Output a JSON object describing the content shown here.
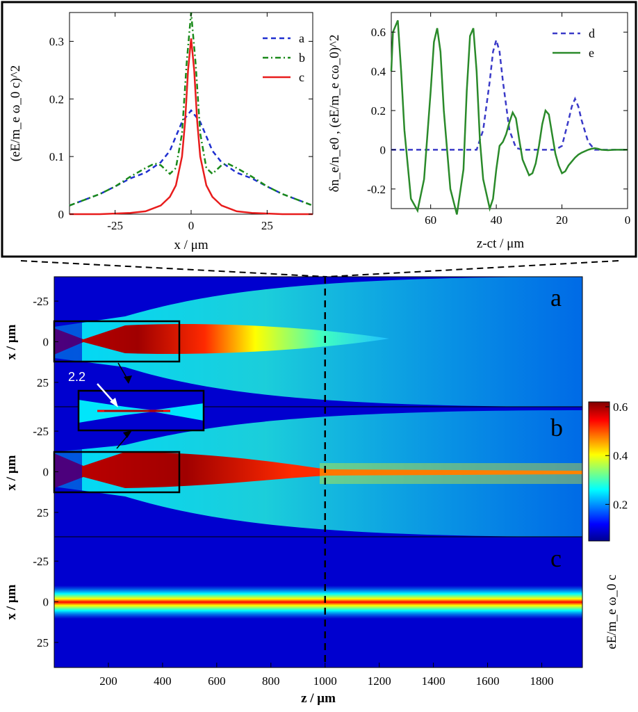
{
  "colors": {
    "series_a": "#1f2fd0",
    "series_b": "#1a8a1a",
    "series_c": "#e81c1c",
    "series_d": "#3a3ac8",
    "series_e": "#2a8a2a",
    "colormap": [
      "#00008f",
      "#0000ff",
      "#00ffff",
      "#ffff00",
      "#ff0000",
      "#800000"
    ]
  },
  "chart_data": [
    {
      "id": "left-inset",
      "type": "line",
      "xlabel": "x / μm",
      "ylabel": "(eE/m_e ω_0 c)^2",
      "xlim": [
        -40,
        40
      ],
      "ylim": [
        0,
        0.35
      ],
      "xticks": [
        -25,
        0,
        25
      ],
      "xtick_labels": [
        "-25",
        "0",
        "25"
      ],
      "yticks": [
        0,
        0.1,
        0.2,
        0.3
      ],
      "ytick_labels": [
        "0",
        "0.1",
        "0.2",
        "0.3"
      ],
      "legend": [
        "a",
        "b",
        "c"
      ],
      "series": [
        {
          "name": "a",
          "style": "dashed",
          "x": [
            -40,
            -35,
            -30,
            -25,
            -20,
            -15,
            -10,
            -7,
            -5,
            -3,
            0,
            3,
            5,
            7,
            10,
            15,
            20,
            25,
            30,
            35,
            40
          ],
          "y": [
            0.015,
            0.025,
            0.035,
            0.048,
            0.062,
            0.072,
            0.09,
            0.11,
            0.135,
            0.16,
            0.18,
            0.16,
            0.135,
            0.11,
            0.09,
            0.072,
            0.062,
            0.048,
            0.035,
            0.025,
            0.015
          ]
        },
        {
          "name": "b",
          "style": "dashdot",
          "x": [
            -40,
            -35,
            -30,
            -25,
            -20,
            -15,
            -12,
            -10,
            -7,
            -5,
            -3,
            -1.5,
            0,
            1.5,
            3,
            5,
            7,
            10,
            12,
            15,
            20,
            25,
            30,
            35,
            40
          ],
          "y": [
            0.015,
            0.025,
            0.035,
            0.048,
            0.065,
            0.08,
            0.088,
            0.085,
            0.07,
            0.08,
            0.14,
            0.26,
            0.35,
            0.26,
            0.14,
            0.08,
            0.07,
            0.085,
            0.088,
            0.08,
            0.065,
            0.048,
            0.035,
            0.025,
            0.015
          ]
        },
        {
          "name": "c",
          "style": "solid",
          "x": [
            -40,
            -30,
            -20,
            -15,
            -10,
            -7,
            -5,
            -3,
            -2,
            -1,
            0,
            1,
            2,
            3,
            5,
            7,
            10,
            15,
            20,
            30,
            40
          ],
          "y": [
            0,
            0,
            0.002,
            0.005,
            0.015,
            0.03,
            0.05,
            0.1,
            0.16,
            0.25,
            0.305,
            0.25,
            0.16,
            0.1,
            0.05,
            0.03,
            0.015,
            0.005,
            0.002,
            0,
            0
          ]
        }
      ]
    },
    {
      "id": "right-inset",
      "type": "line",
      "xlabel": "z-ct /  μm",
      "ylabel": "δn_e/n_e0 , (eE/m_e cω_0)^2",
      "xlim": [
        72,
        0
      ],
      "ylim": [
        -0.3,
        0.7
      ],
      "xticks": [
        60,
        40,
        20,
        0
      ],
      "xtick_labels": [
        "60",
        "40",
        "20",
        "0"
      ],
      "yticks": [
        -0.2,
        0,
        0.2,
        0.4,
        0.6
      ],
      "ytick_labels": [
        "-0.2",
        "0",
        "0.2",
        "0.4",
        "0.6"
      ],
      "legend": [
        "d",
        "e"
      ],
      "series": [
        {
          "name": "d",
          "style": "dashed",
          "x": [
            72,
            50,
            46,
            44,
            42,
            41,
            40,
            39,
            38,
            36,
            34,
            32,
            30,
            28,
            26,
            24,
            22,
            20,
            18,
            17,
            16,
            15,
            14,
            12,
            10,
            8,
            5,
            0
          ],
          "y": [
            0,
            0,
            0,
            0.1,
            0.35,
            0.5,
            0.56,
            0.5,
            0.35,
            0.1,
            0.01,
            0,
            0,
            0,
            0,
            0,
            0,
            0.02,
            0.15,
            0.22,
            0.26,
            0.22,
            0.15,
            0.04,
            0,
            0,
            0,
            0
          ]
        },
        {
          "name": "e",
          "style": "solid",
          "x": [
            72,
            71.5,
            70,
            69,
            68,
            66,
            64,
            62,
            60,
            59,
            58,
            57,
            56,
            54,
            52,
            50,
            49,
            48,
            47,
            46,
            45,
            44,
            42,
            41,
            40,
            39,
            38,
            37,
            36,
            35,
            34,
            33,
            32,
            30,
            29,
            28,
            27,
            26,
            25,
            24,
            23,
            22,
            21,
            20,
            19,
            18,
            17,
            16,
            15,
            14,
            12,
            11,
            10,
            9,
            8,
            6,
            4,
            2,
            0
          ],
          "y": [
            0.4,
            0.6,
            0.66,
            0.4,
            0.1,
            -0.25,
            -0.31,
            -0.15,
            0.3,
            0.55,
            0.62,
            0.5,
            0.2,
            -0.2,
            -0.33,
            -0.1,
            0.3,
            0.58,
            0.62,
            0.4,
            0.05,
            -0.15,
            -0.3,
            -0.25,
            -0.1,
            0.02,
            0.04,
            0.08,
            0.14,
            0.19,
            0.16,
            0.05,
            -0.05,
            -0.13,
            -0.12,
            -0.07,
            0.02,
            0.13,
            0.2,
            0.18,
            0.08,
            -0.02,
            -0.08,
            -0.12,
            -0.11,
            -0.08,
            -0.06,
            -0.04,
            -0.025,
            -0.015,
            0,
            0.005,
            0.008,
            0.005,
            0,
            -0.002,
            0,
            0,
            0
          ]
        }
      ]
    },
    {
      "id": "map-panels",
      "type": "heatmap",
      "xlabel": "z / μm",
      "ylabel": "x / μm",
      "xlim": [
        0,
        1950
      ],
      "ylim": [
        -40,
        40
      ],
      "xticks": [
        200,
        400,
        600,
        800,
        1000,
        1200,
        1400,
        1600,
        1800
      ],
      "xtick_labels": [
        "200",
        "400",
        "600",
        "800",
        "1000",
        "1200",
        "1400",
        "1600",
        "1800"
      ],
      "yticks": [
        -25,
        0,
        25
      ],
      "ytick_labels": [
        "-25",
        "0",
        "25"
      ],
      "panels": [
        "a",
        "b",
        "c"
      ],
      "dashed_line_z": 1000,
      "colorbar": {
        "label": "eE/m_e ω_0 c",
        "range": [
          0.05,
          0.62
        ],
        "ticks": [
          0.2,
          0.4,
          0.6
        ],
        "tick_labels": [
          "0.2",
          "0.4",
          "0.6"
        ]
      },
      "zoom_annotation": "2.2"
    }
  ]
}
